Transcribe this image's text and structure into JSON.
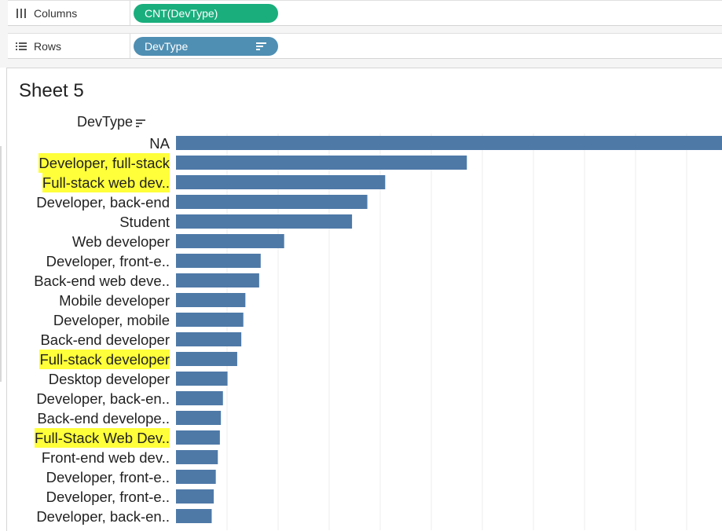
{
  "shelves": {
    "columns_label": "Columns",
    "columns_pill": "CNT(DevType)",
    "rows_label": "Rows",
    "rows_pill": "DevType"
  },
  "sheet": {
    "title": "Sheet 5",
    "row_header": "DevType"
  },
  "colors": {
    "bar": "#4e79a7",
    "highlight": "#ffff3a",
    "columns_pill": "#1aae7d",
    "rows_pill": "#4f8fb3"
  },
  "icons": {
    "columns": "columns-icon",
    "rows": "rows-icon",
    "sort": "sort-descending-icon"
  },
  "chart_data": {
    "type": "bar",
    "orientation": "horizontal",
    "categories": [
      "NA",
      "Developer, full-stack",
      "Full-stack web dev..",
      "Developer, back-end",
      "Student",
      "Web developer",
      "Developer, front-e..",
      "Back-end web deve..",
      "Mobile developer",
      "Developer, mobile",
      "Back-end developer",
      "Full-stack developer",
      "Desktop developer",
      "Developer, back-en..",
      "Back-end develope..",
      "Full-Stack Web Dev..",
      "Front-end web dev..",
      "Developer, front-e..",
      "Developer, front-e..",
      "Developer, back-en.."
    ],
    "values": [
      107,
      57,
      41,
      37.5,
      34.5,
      21.2,
      16.6,
      16.3,
      13.6,
      13.2,
      12.8,
      12.0,
      10.1,
      9.2,
      8.8,
      8.6,
      8.2,
      7.8,
      7.4,
      7.0
    ],
    "highlighted": [
      1,
      2,
      11,
      15
    ],
    "xlim": [
      0,
      107
    ],
    "grid": true
  }
}
